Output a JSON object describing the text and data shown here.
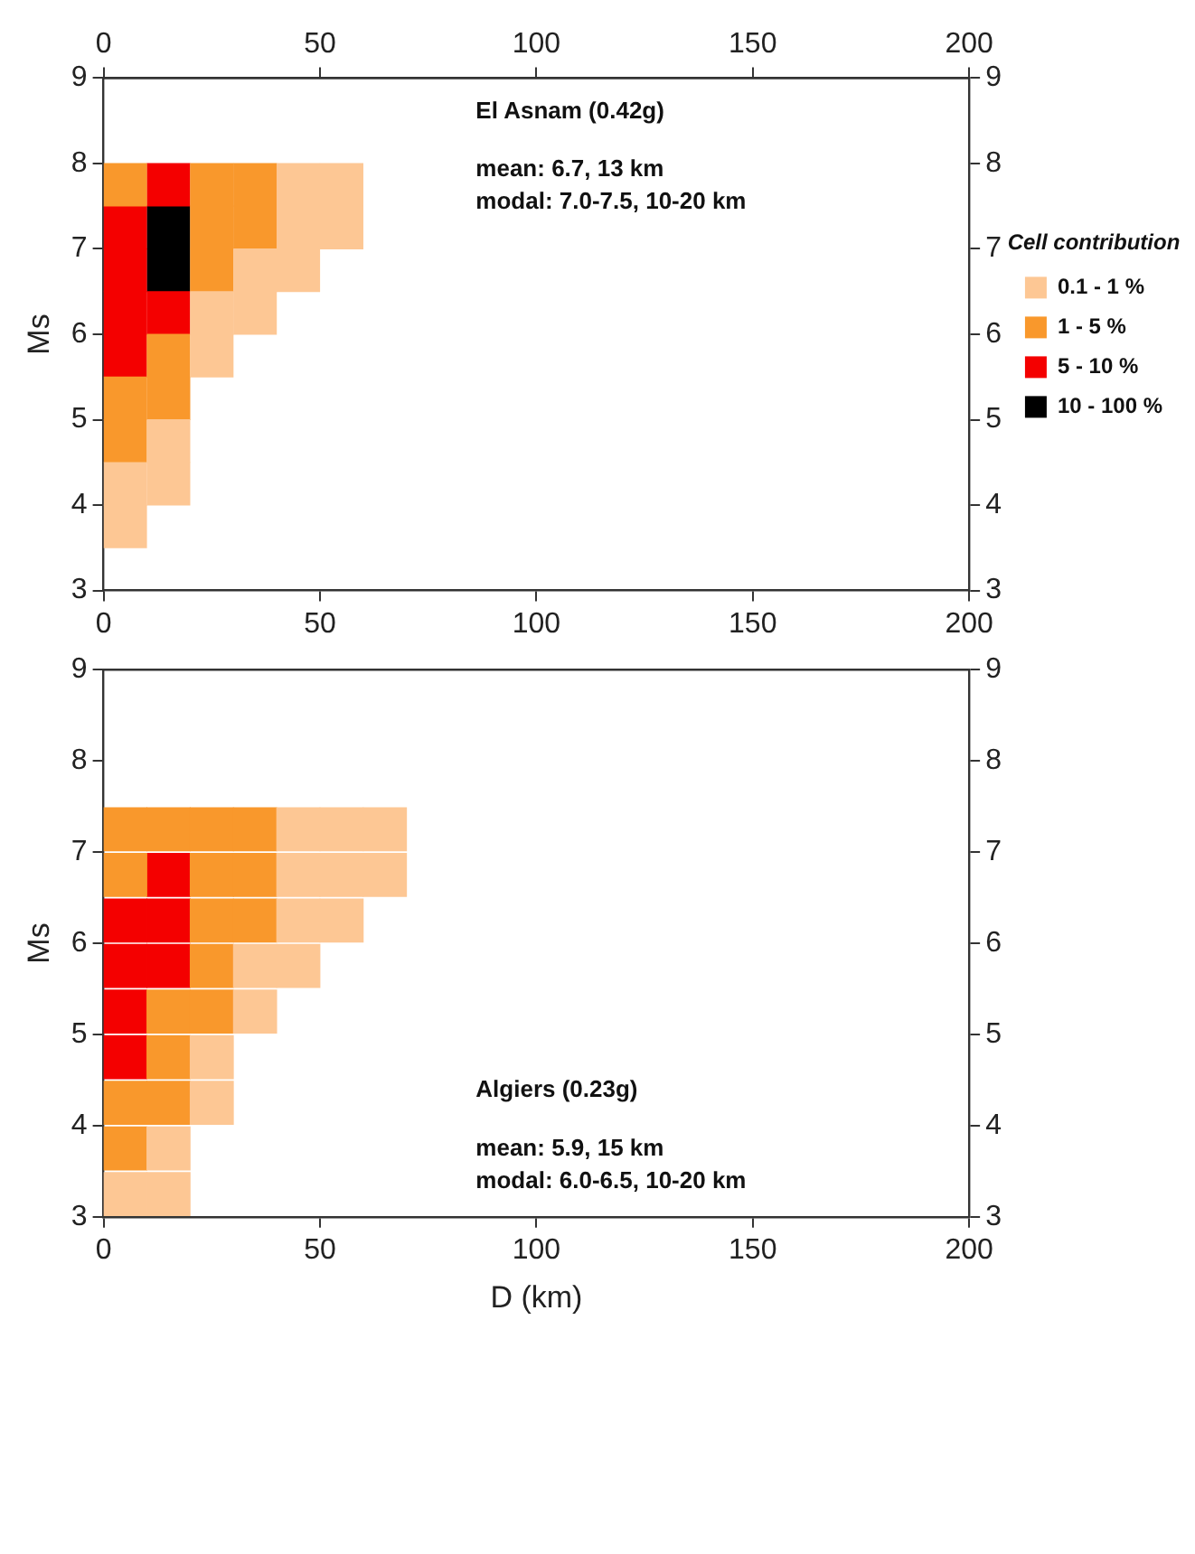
{
  "chart_data": [
    {
      "type": "scatter",
      "ylabel": "Ms",
      "legend_title": "Cell contribution",
      "legend": "right",
      "marker": "square",
      "annotations": [
        "El Asnam (0.42g)",
        "mean: 6.7, 13 km",
        "modal: 7.0-7.5, 10-20 km"
      ],
      "xlim": [
        0,
        200
      ],
      "xticks": [
        0,
        50,
        100,
        150,
        200
      ],
      "x2lim": [
        0,
        200
      ],
      "x2ticks": [
        0,
        50,
        100,
        150,
        200
      ],
      "ylim": [
        3,
        9
      ],
      "yticks": [
        3,
        4,
        5,
        6,
        7,
        8,
        9
      ],
      "y2lim": [
        3,
        9
      ],
      "y2ticks": [
        3,
        4,
        5,
        6,
        7,
        8,
        9
      ],
      "series": [
        {
          "name": "0.1 - 1 %",
          "color": "#fdc794",
          "x": [
            45,
            55,
            45,
            55,
            35,
            45,
            25,
            35,
            25,
            15,
            5,
            15,
            5
          ],
          "values": [
            7.75,
            7.75,
            7.25,
            7.25,
            6.75,
            6.75,
            6.25,
            6.25,
            5.75,
            4.75,
            4.25,
            4.25,
            3.75
          ]
        },
        {
          "name": "1 - 5 %",
          "color": "#f9982c",
          "x": [
            5,
            25,
            35,
            25,
            35,
            25,
            15,
            5,
            15,
            5
          ],
          "values": [
            7.75,
            7.75,
            7.75,
            7.25,
            7.25,
            6.75,
            5.75,
            5.25,
            5.25,
            4.75
          ]
        },
        {
          "name": "5 - 10 %",
          "color": "#f40000",
          "x": [
            15,
            5,
            5,
            5,
            15,
            5
          ],
          "values": [
            7.75,
            7.25,
            6.75,
            6.25,
            6.25,
            5.75
          ]
        },
        {
          "name": "10 - 100 %",
          "color": "#000000",
          "x": [
            15,
            15
          ],
          "values": [
            7.25,
            6.75
          ]
        }
      ]
    },
    {
      "type": "scatter",
      "ylabel": "Ms",
      "xlabel": "D (km)",
      "marker": "square",
      "annotations": [
        "Algiers (0.23g)",
        "mean: 5.9, 15 km",
        "modal: 6.0-6.5, 10-20 km"
      ],
      "xlim": [
        0,
        200
      ],
      "xticks": [
        0,
        50,
        100,
        150,
        200
      ],
      "ylim": [
        3,
        9
      ],
      "yticks": [
        3,
        4,
        5,
        6,
        7,
        8,
        9
      ],
      "y2lim": [
        3,
        9
      ],
      "y2ticks": [
        3,
        4,
        5,
        6,
        7,
        8,
        9
      ],
      "series": [
        {
          "color": "#fdc794",
          "x": [
            45,
            55,
            65,
            45,
            55,
            65,
            45,
            55,
            35,
            45,
            35,
            25,
            25,
            15,
            5,
            15
          ],
          "values": [
            7.25,
            7.25,
            7.25,
            6.75,
            6.75,
            6.75,
            6.25,
            6.25,
            5.75,
            5.75,
            5.25,
            4.75,
            4.25,
            3.75,
            3.25,
            3.25
          ]
        },
        {
          "color": "#f9982c",
          "x": [
            5,
            15,
            25,
            35,
            5,
            25,
            35,
            25,
            35,
            25,
            15,
            25,
            15,
            5,
            15,
            5
          ],
          "values": [
            7.25,
            7.25,
            7.25,
            7.25,
            6.75,
            6.75,
            6.75,
            6.25,
            6.25,
            5.75,
            5.25,
            5.25,
            4.75,
            4.25,
            4.25,
            3.75
          ]
        },
        {
          "color": "#f40000",
          "x": [
            15,
            5,
            15,
            5,
            15,
            5,
            5
          ],
          "values": [
            6.75,
            6.25,
            6.25,
            5.75,
            5.75,
            5.25,
            4.75
          ]
        }
      ]
    }
  ]
}
